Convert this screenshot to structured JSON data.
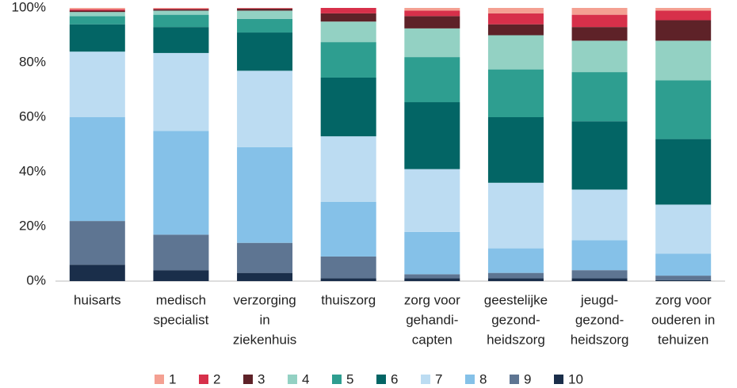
{
  "chart_data": {
    "type": "stacked_bar",
    "categories": [
      [
        "huisarts"
      ],
      [
        "medisch",
        "specialist"
      ],
      [
        "verzorging",
        "in",
        "ziekenhuis"
      ],
      [
        "thuiszorg"
      ],
      [
        "zorg voor",
        "gehandi-",
        "capten"
      ],
      [
        "geestelijke",
        "gezond-",
        "heidszorg"
      ],
      [
        "jeugd-",
        "gezond-",
        "heidszorg"
      ],
      [
        "zorg voor",
        "ouderen in",
        "tehuizen"
      ]
    ],
    "series": [
      {
        "name": "1",
        "color": "#f4a092",
        "values": [
          0.5,
          0.2,
          0.1,
          0,
          1,
          2,
          2.5,
          1
        ]
      },
      {
        "name": "2",
        "color": "#d7304a",
        "values": [
          0.5,
          0.3,
          0.2,
          2,
          2,
          4,
          4.5,
          3.5
        ]
      },
      {
        "name": "3",
        "color": "#5e2228",
        "values": [
          0.5,
          0.5,
          0.7,
          3,
          4.5,
          4,
          5,
          7.5
        ]
      },
      {
        "name": "4",
        "color": "#93d1c3",
        "values": [
          1.5,
          1.5,
          3,
          7.5,
          10.5,
          12.5,
          11.5,
          14.5
        ]
      },
      {
        "name": "5",
        "color": "#2e9e90",
        "values": [
          3,
          4.5,
          5,
          13,
          16.5,
          17.5,
          18,
          21.5
        ]
      },
      {
        "name": "6",
        "color": "#036565",
        "values": [
          10,
          9.5,
          14,
          21.5,
          24.5,
          24,
          25,
          24
        ]
      },
      {
        "name": "7",
        "color": "#bcdcf2",
        "values": [
          24,
          28.5,
          28,
          24,
          23,
          24,
          18.5,
          18
        ]
      },
      {
        "name": "8",
        "color": "#85c1e8",
        "values": [
          38,
          38,
          35,
          20,
          15.5,
          9,
          11,
          8
        ]
      },
      {
        "name": "9",
        "color": "#5e7592",
        "values": [
          16,
          13,
          11,
          8,
          1.5,
          2,
          3,
          1.7
        ]
      },
      {
        "name": "10",
        "color": "#1a2e4a",
        "values": [
          6,
          4,
          3,
          1,
          1,
          1,
          1,
          0.3
        ]
      }
    ],
    "ylim": [
      0,
      100
    ],
    "yticks": [
      {
        "value": 0,
        "label": "0%"
      },
      {
        "value": 20,
        "label": "20%"
      },
      {
        "value": 40,
        "label": "40%"
      },
      {
        "value": 60,
        "label": "60%"
      },
      {
        "value": 80,
        "label": "80%"
      },
      {
        "value": 100,
        "label": "100%"
      }
    ],
    "legend": "bottom"
  }
}
